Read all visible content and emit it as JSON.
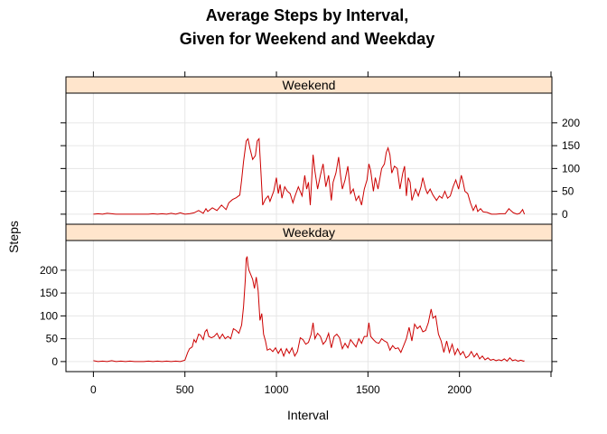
{
  "chart_data": {
    "type": "line",
    "title_line1": "Average Steps by Interval,",
    "title_line2": "Given for Weekend and Weekday",
    "xlabel": "Interval",
    "ylabel": "Steps",
    "xlim": [
      -150,
      2505
    ],
    "ylim": [
      -22,
      265
    ],
    "x_ticks": [
      0,
      500,
      1000,
      1500,
      2000
    ],
    "y_ticks": [
      0,
      50,
      100,
      150,
      200
    ],
    "grid": true,
    "line_color": "#cc0000",
    "strip_color": "#ffe5cc",
    "panels": [
      {
        "name": "Weekend",
        "y_axis_labels": "right",
        "points": [
          [
            0,
            0
          ],
          [
            25,
            1
          ],
          [
            50,
            0
          ],
          [
            75,
            2
          ],
          [
            100,
            1
          ],
          [
            125,
            0
          ],
          [
            150,
            0
          ],
          [
            175,
            0
          ],
          [
            200,
            0
          ],
          [
            225,
            0
          ],
          [
            250,
            0
          ],
          [
            275,
            0
          ],
          [
            300,
            0
          ],
          [
            325,
            1
          ],
          [
            350,
            0
          ],
          [
            375,
            1
          ],
          [
            400,
            0
          ],
          [
            425,
            2
          ],
          [
            450,
            0
          ],
          [
            475,
            3
          ],
          [
            500,
            0
          ],
          [
            525,
            1
          ],
          [
            550,
            3
          ],
          [
            575,
            8
          ],
          [
            600,
            2
          ],
          [
            615,
            12
          ],
          [
            625,
            6
          ],
          [
            650,
            14
          ],
          [
            675,
            8
          ],
          [
            700,
            20
          ],
          [
            725,
            10
          ],
          [
            740,
            25
          ],
          [
            760,
            32
          ],
          [
            780,
            36
          ],
          [
            800,
            42
          ],
          [
            810,
            75
          ],
          [
            820,
            115
          ],
          [
            835,
            160
          ],
          [
            845,
            165
          ],
          [
            855,
            145
          ],
          [
            870,
            120
          ],
          [
            885,
            128
          ],
          [
            895,
            160
          ],
          [
            905,
            165
          ],
          [
            915,
            95
          ],
          [
            925,
            20
          ],
          [
            940,
            33
          ],
          [
            955,
            40
          ],
          [
            965,
            28
          ],
          [
            985,
            50
          ],
          [
            1000,
            80
          ],
          [
            1010,
            45
          ],
          [
            1020,
            65
          ],
          [
            1030,
            35
          ],
          [
            1045,
            60
          ],
          [
            1060,
            50
          ],
          [
            1075,
            45
          ],
          [
            1090,
            25
          ],
          [
            1100,
            38
          ],
          [
            1120,
            60
          ],
          [
            1140,
            40
          ],
          [
            1155,
            85
          ],
          [
            1165,
            55
          ],
          [
            1175,
            70
          ],
          [
            1185,
            20
          ],
          [
            1200,
            130
          ],
          [
            1210,
            95
          ],
          [
            1225,
            55
          ],
          [
            1240,
            85
          ],
          [
            1255,
            110
          ],
          [
            1270,
            60
          ],
          [
            1285,
            85
          ],
          [
            1300,
            30
          ],
          [
            1310,
            70
          ],
          [
            1325,
            90
          ],
          [
            1340,
            125
          ],
          [
            1350,
            85
          ],
          [
            1360,
            55
          ],
          [
            1375,
            75
          ],
          [
            1390,
            105
          ],
          [
            1405,
            45
          ],
          [
            1420,
            55
          ],
          [
            1435,
            30
          ],
          [
            1450,
            40
          ],
          [
            1465,
            20
          ],
          [
            1480,
            55
          ],
          [
            1495,
            75
          ],
          [
            1505,
            110
          ],
          [
            1515,
            95
          ],
          [
            1530,
            50
          ],
          [
            1540,
            80
          ],
          [
            1555,
            55
          ],
          [
            1575,
            100
          ],
          [
            1590,
            110
          ],
          [
            1600,
            135
          ],
          [
            1610,
            145
          ],
          [
            1620,
            130
          ],
          [
            1630,
            90
          ],
          [
            1645,
            105
          ],
          [
            1660,
            100
          ],
          [
            1675,
            55
          ],
          [
            1690,
            90
          ],
          [
            1700,
            105
          ],
          [
            1710,
            40
          ],
          [
            1720,
            80
          ],
          [
            1730,
            70
          ],
          [
            1740,
            30
          ],
          [
            1760,
            55
          ],
          [
            1775,
            40
          ],
          [
            1790,
            60
          ],
          [
            1800,
            80
          ],
          [
            1815,
            55
          ],
          [
            1825,
            45
          ],
          [
            1840,
            55
          ],
          [
            1855,
            42
          ],
          [
            1875,
            30
          ],
          [
            1890,
            40
          ],
          [
            1905,
            35
          ],
          [
            1920,
            50
          ],
          [
            1935,
            35
          ],
          [
            1950,
            40
          ],
          [
            1965,
            60
          ],
          [
            1980,
            75
          ],
          [
            1995,
            55
          ],
          [
            2010,
            85
          ],
          [
            2020,
            70
          ],
          [
            2030,
            50
          ],
          [
            2045,
            45
          ],
          [
            2060,
            25
          ],
          [
            2075,
            8
          ],
          [
            2090,
            20
          ],
          [
            2100,
            6
          ],
          [
            2115,
            12
          ],
          [
            2130,
            5
          ],
          [
            2150,
            4
          ],
          [
            2175,
            0
          ],
          [
            2200,
            0
          ],
          [
            2225,
            1
          ],
          [
            2250,
            1
          ],
          [
            2270,
            12
          ],
          [
            2280,
            8
          ],
          [
            2295,
            3
          ],
          [
            2315,
            0
          ],
          [
            2330,
            2
          ],
          [
            2345,
            10
          ],
          [
            2355,
            0
          ]
        ]
      },
      {
        "name": "Weekday",
        "y_axis_labels": "left",
        "points": [
          [
            0,
            2
          ],
          [
            25,
            0
          ],
          [
            50,
            1
          ],
          [
            75,
            0
          ],
          [
            100,
            2
          ],
          [
            125,
            0
          ],
          [
            150,
            1
          ],
          [
            175,
            0
          ],
          [
            200,
            1
          ],
          [
            225,
            0
          ],
          [
            250,
            0
          ],
          [
            275,
            0
          ],
          [
            300,
            1
          ],
          [
            325,
            0
          ],
          [
            350,
            1
          ],
          [
            375,
            0
          ],
          [
            400,
            1
          ],
          [
            425,
            0
          ],
          [
            450,
            1
          ],
          [
            475,
            0
          ],
          [
            500,
            3
          ],
          [
            515,
            20
          ],
          [
            525,
            28
          ],
          [
            540,
            32
          ],
          [
            550,
            48
          ],
          [
            560,
            42
          ],
          [
            575,
            60
          ],
          [
            585,
            58
          ],
          [
            600,
            48
          ],
          [
            610,
            65
          ],
          [
            620,
            70
          ],
          [
            630,
            55
          ],
          [
            645,
            52
          ],
          [
            660,
            55
          ],
          [
            675,
            62
          ],
          [
            690,
            50
          ],
          [
            705,
            60
          ],
          [
            720,
            50
          ],
          [
            735,
            55
          ],
          [
            750,
            50
          ],
          [
            765,
            72
          ],
          [
            780,
            68
          ],
          [
            795,
            62
          ],
          [
            810,
            80
          ],
          [
            820,
            120
          ],
          [
            830,
            180
          ],
          [
            835,
            225
          ],
          [
            840,
            230
          ],
          [
            845,
            210
          ],
          [
            850,
            200
          ],
          [
            860,
            190
          ],
          [
            870,
            180
          ],
          [
            880,
            160
          ],
          [
            890,
            185
          ],
          [
            900,
            155
          ],
          [
            910,
            90
          ],
          [
            920,
            105
          ],
          [
            930,
            60
          ],
          [
            940,
            45
          ],
          [
            950,
            25
          ],
          [
            965,
            28
          ],
          [
            980,
            22
          ],
          [
            995,
            30
          ],
          [
            1010,
            18
          ],
          [
            1025,
            28
          ],
          [
            1040,
            12
          ],
          [
            1055,
            28
          ],
          [
            1070,
            18
          ],
          [
            1085,
            30
          ],
          [
            1100,
            12
          ],
          [
            1115,
            22
          ],
          [
            1130,
            52
          ],
          [
            1145,
            48
          ],
          [
            1160,
            38
          ],
          [
            1175,
            42
          ],
          [
            1190,
            60
          ],
          [
            1200,
            85
          ],
          [
            1210,
            50
          ],
          [
            1225,
            62
          ],
          [
            1240,
            55
          ],
          [
            1255,
            38
          ],
          [
            1270,
            45
          ],
          [
            1285,
            62
          ],
          [
            1300,
            30
          ],
          [
            1315,
            55
          ],
          [
            1330,
            60
          ],
          [
            1345,
            52
          ],
          [
            1360,
            28
          ],
          [
            1375,
            40
          ],
          [
            1390,
            30
          ],
          [
            1405,
            48
          ],
          [
            1420,
            40
          ],
          [
            1435,
            32
          ],
          [
            1450,
            50
          ],
          [
            1465,
            40
          ],
          [
            1480,
            55
          ],
          [
            1495,
            55
          ],
          [
            1505,
            85
          ],
          [
            1515,
            55
          ],
          [
            1530,
            48
          ],
          [
            1545,
            42
          ],
          [
            1560,
            40
          ],
          [
            1575,
            50
          ],
          [
            1590,
            45
          ],
          [
            1605,
            42
          ],
          [
            1620,
            25
          ],
          [
            1635,
            35
          ],
          [
            1650,
            28
          ],
          [
            1665,
            30
          ],
          [
            1680,
            20
          ],
          [
            1695,
            35
          ],
          [
            1710,
            50
          ],
          [
            1725,
            75
          ],
          [
            1740,
            45
          ],
          [
            1755,
            82
          ],
          [
            1770,
            72
          ],
          [
            1785,
            78
          ],
          [
            1800,
            65
          ],
          [
            1815,
            68
          ],
          [
            1830,
            85
          ],
          [
            1845,
            115
          ],
          [
            1855,
            95
          ],
          [
            1870,
            100
          ],
          [
            1885,
            60
          ],
          [
            1900,
            45
          ],
          [
            1915,
            20
          ],
          [
            1930,
            45
          ],
          [
            1945,
            20
          ],
          [
            1960,
            38
          ],
          [
            1975,
            15
          ],
          [
            1990,
            28
          ],
          [
            2005,
            15
          ],
          [
            2020,
            22
          ],
          [
            2035,
            8
          ],
          [
            2050,
            12
          ],
          [
            2065,
            22
          ],
          [
            2080,
            10
          ],
          [
            2095,
            18
          ],
          [
            2110,
            6
          ],
          [
            2125,
            12
          ],
          [
            2140,
            4
          ],
          [
            2155,
            8
          ],
          [
            2170,
            3
          ],
          [
            2185,
            5
          ],
          [
            2200,
            2
          ],
          [
            2215,
            4
          ],
          [
            2230,
            2
          ],
          [
            2245,
            6
          ],
          [
            2260,
            1
          ],
          [
            2275,
            8
          ],
          [
            2290,
            2
          ],
          [
            2305,
            4
          ],
          [
            2320,
            1
          ],
          [
            2335,
            3
          ],
          [
            2350,
            1
          ],
          [
            2355,
            2
          ]
        ]
      }
    ]
  }
}
